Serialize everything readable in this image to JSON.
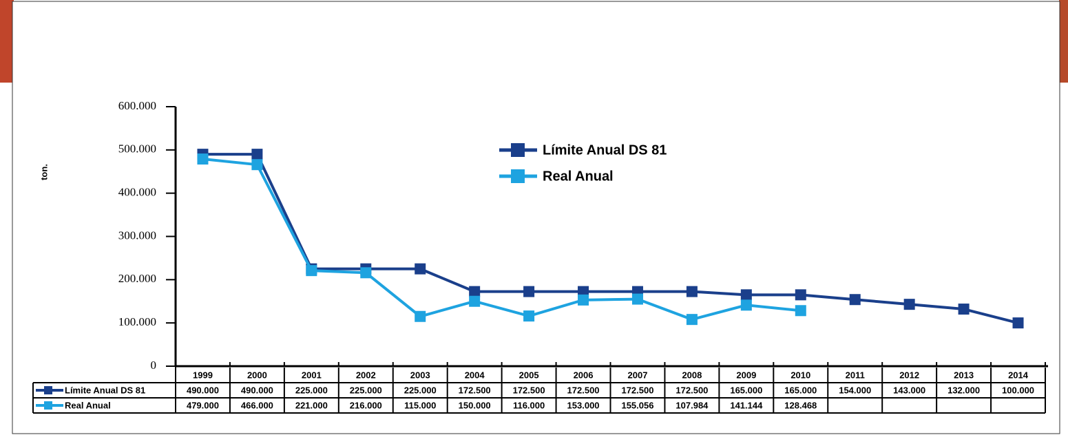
{
  "chart_data": {
    "type": "line",
    "y_label": "ton.",
    "categories": [
      "1999",
      "2000",
      "2001",
      "2002",
      "2003",
      "2004",
      "2005",
      "2006",
      "2007",
      "2008",
      "2009",
      "2010",
      "2011",
      "2012",
      "2013",
      "2014"
    ],
    "series": [
      {
        "name": "Límite Anual DS 81",
        "color": "#1a3f8b",
        "values": [
          490000,
          490000,
          225000,
          225000,
          225000,
          172500,
          172500,
          172500,
          172500,
          172500,
          165000,
          165000,
          154000,
          143000,
          132000,
          100000
        ],
        "value_labels": [
          "490.000",
          "490.000",
          "225.000",
          "225.000",
          "225.000",
          "172.500",
          "172.500",
          "172.500",
          "172.500",
          "172.500",
          "165.000",
          "165.000",
          "154.000",
          "143.000",
          "132.000",
          "100.000"
        ]
      },
      {
        "name": "Real Anual",
        "color": "#1ea3e0",
        "values": [
          479000,
          466000,
          221000,
          216000,
          115000,
          150000,
          116000,
          153000,
          155056,
          107984,
          141144,
          128468,
          null,
          null,
          null,
          null
        ],
        "value_labels": [
          "479.000",
          "466.000",
          "221.000",
          "216.000",
          "115.000",
          "150.000",
          "116.000",
          "153.000",
          "155.056",
          "107.984",
          "141.144",
          "128.468",
          null,
          null,
          null,
          null
        ]
      }
    ],
    "ylim": [
      0,
      600000
    ],
    "yticks": [
      0,
      {
        "value": 100000,
        "label": "100.000"
      },
      {
        "value": 200000,
        "label": "200.000"
      },
      {
        "value": 300000,
        "label": "300.000"
      },
      {
        "value": 400000,
        "label": "400.000"
      },
      {
        "value": 500000,
        "label": "500.000"
      },
      {
        "value": 600000,
        "label": "600.000"
      }
    ],
    "legend": "top-center"
  }
}
